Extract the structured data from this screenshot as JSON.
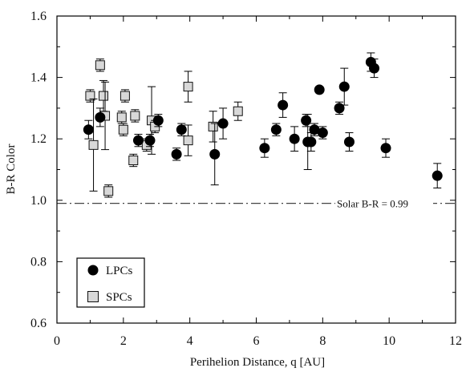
{
  "chart_data": {
    "type": "scatter",
    "title": "",
    "xlabel": "Perihelion Distance, q [AU]",
    "ylabel": "B-R Color",
    "xlim": [
      0,
      12
    ],
    "ylim": [
      0.6,
      1.6
    ],
    "x_ticks": [
      0,
      2,
      4,
      6,
      8,
      10,
      12
    ],
    "y_ticks": [
      0.6,
      0.8,
      1.0,
      1.2,
      1.4,
      1.6
    ],
    "x_tick_labels": [
      "0",
      "2",
      "4",
      "6",
      "8",
      "10",
      "12"
    ],
    "y_tick_labels": [
      "0.6",
      "0.8",
      "1.0",
      "1.2",
      "1.4",
      "1.6"
    ],
    "grid": false,
    "legend_position": "bottom-left",
    "reference_line": {
      "label": "Solar B-R = 0.99",
      "value": 0.99
    },
    "series": [
      {
        "name": "LPCs",
        "marker": "circle",
        "color": "#000000",
        "points": [
          {
            "x": 0.95,
            "y": 1.23,
            "yerr": 0.03
          },
          {
            "x": 1.3,
            "y": 1.27,
            "yerr": 0.03
          },
          {
            "x": 2.45,
            "y": 1.195,
            "yerr": 0.02
          },
          {
            "x": 2.8,
            "y": 1.195,
            "yerr": 0.02
          },
          {
            "x": 3.05,
            "y": 1.26,
            "yerr": 0.02
          },
          {
            "x": 3.6,
            "y": 1.15,
            "yerr": 0.02
          },
          {
            "x": 3.75,
            "y": 1.23,
            "yerr": 0.02
          },
          {
            "x": 4.75,
            "y": 1.15,
            "yerr": 0.1
          },
          {
            "x": 5.0,
            "y": 1.25,
            "yerr": 0.05
          },
          {
            "x": 6.25,
            "y": 1.17,
            "yerr": 0.03
          },
          {
            "x": 6.6,
            "y": 1.23,
            "yerr": 0.02
          },
          {
            "x": 6.8,
            "y": 1.31,
            "yerr": 0.04
          },
          {
            "x": 7.15,
            "y": 1.2,
            "yerr": 0.04
          },
          {
            "x": 7.5,
            "y": 1.26,
            "yerr": 0.02
          },
          {
            "x": 7.55,
            "y": 1.19,
            "yerr": 0.09
          },
          {
            "x": 7.65,
            "y": 1.19,
            "yerr": 0.03
          },
          {
            "x": 7.75,
            "y": 1.23,
            "yerr": 0.02
          },
          {
            "x": 7.9,
            "y": 1.36,
            "yerr": 0.01
          },
          {
            "x": 8.0,
            "y": 1.22,
            "yerr": 0.02
          },
          {
            "x": 8.5,
            "y": 1.3,
            "yerr": 0.02
          },
          {
            "x": 8.65,
            "y": 1.37,
            "yerr": 0.06
          },
          {
            "x": 8.8,
            "y": 1.19,
            "yerr": 0.03
          },
          {
            "x": 9.45,
            "y": 1.45,
            "yerr": 0.03
          },
          {
            "x": 9.55,
            "y": 1.43,
            "yerr": 0.03
          },
          {
            "x": 9.9,
            "y": 1.17,
            "yerr": 0.03
          },
          {
            "x": 11.45,
            "y": 1.08,
            "yerr": 0.04
          }
        ]
      },
      {
        "name": "SPCs",
        "marker": "square",
        "color": "#d8d8d8",
        "points": [
          {
            "x": 1.0,
            "y": 1.34,
            "yerr": 0.02
          },
          {
            "x": 1.1,
            "y": 1.18,
            "yerr": 0.15
          },
          {
            "x": 1.3,
            "y": 1.44,
            "yerr": 0.02
          },
          {
            "x": 1.4,
            "y": 1.34,
            "yerr": 0.05
          },
          {
            "x": 1.45,
            "y": 1.275,
            "yerr": 0.11
          },
          {
            "x": 1.55,
            "y": 1.03,
            "yerr": 0.02
          },
          {
            "x": 1.95,
            "y": 1.27,
            "yerr": 0.02
          },
          {
            "x": 2.0,
            "y": 1.23,
            "yerr": 0.02
          },
          {
            "x": 2.05,
            "y": 1.34,
            "yerr": 0.02
          },
          {
            "x": 2.3,
            "y": 1.13,
            "yerr": 0.02
          },
          {
            "x": 2.35,
            "y": 1.275,
            "yerr": 0.02
          },
          {
            "x": 2.7,
            "y": 1.18,
            "yerr": 0.02
          },
          {
            "x": 2.85,
            "y": 1.26,
            "yerr": 0.11
          },
          {
            "x": 2.95,
            "y": 1.24,
            "yerr": 0.02
          },
          {
            "x": 3.95,
            "y": 1.37,
            "yerr": 0.05
          },
          {
            "x": 3.95,
            "y": 1.195,
            "yerr": 0.05
          },
          {
            "x": 4.7,
            "y": 1.24,
            "yerr": 0.05
          },
          {
            "x": 5.45,
            "y": 1.29,
            "yerr": 0.03
          }
        ]
      }
    ]
  }
}
